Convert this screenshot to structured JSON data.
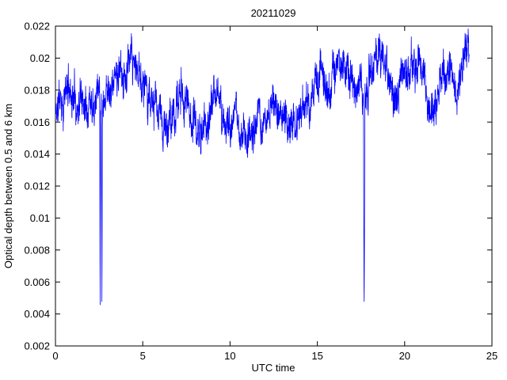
{
  "chart_data": {
    "type": "line",
    "title": "20211029",
    "xlabel": "UTC time",
    "ylabel": "Optical depth between 0.5 and 6 km",
    "xlim": [
      0,
      25
    ],
    "ylim": [
      0.002,
      0.022
    ],
    "xticks": [
      "0",
      "5",
      "10",
      "15",
      "20",
      "25"
    ],
    "yticks": [
      "0.002",
      "0.004",
      "0.006",
      "0.008",
      "0.01",
      "0.012",
      "0.014",
      "0.016",
      "0.018",
      "0.02",
      "0.022"
    ],
    "grid": false,
    "legend": "none",
    "line_color": "#0000ff",
    "axes_color": "#000000",
    "background_color": "#ffffff",
    "series": [
      {
        "name": "optical-depth-trace",
        "x_start": 0,
        "x_end": 23.7,
        "n_points": 2400,
        "seed": 11,
        "noise_hf": 0.0008,
        "noise_walk": 0.0011,
        "walk_decay": 0.9,
        "mean_profile": [
          [
            0.0,
            0.0163
          ],
          [
            0.2,
            0.0173
          ],
          [
            0.5,
            0.0176
          ],
          [
            0.8,
            0.0182
          ],
          [
            1.0,
            0.0178
          ],
          [
            1.3,
            0.0174
          ],
          [
            1.7,
            0.0178
          ],
          [
            2.0,
            0.0181
          ],
          [
            2.35,
            0.0188
          ],
          [
            2.6,
            0.0184
          ],
          [
            2.9,
            0.0184
          ],
          [
            3.3,
            0.0186
          ],
          [
            3.7,
            0.0187
          ],
          [
            4.1,
            0.019
          ],
          [
            4.4,
            0.0192
          ],
          [
            4.8,
            0.0188
          ],
          [
            5.1,
            0.0186
          ],
          [
            5.3,
            0.0182
          ],
          [
            5.6,
            0.0166
          ],
          [
            6.0,
            0.016
          ],
          [
            6.4,
            0.0153
          ],
          [
            6.7,
            0.016
          ],
          [
            7.0,
            0.017
          ],
          [
            7.3,
            0.018
          ],
          [
            7.6,
            0.0172
          ],
          [
            8.0,
            0.016
          ],
          [
            8.25,
            0.0151
          ],
          [
            8.6,
            0.0156
          ],
          [
            9.0,
            0.0172
          ],
          [
            9.25,
            0.0174
          ],
          [
            9.6,
            0.0165
          ],
          [
            10.0,
            0.016
          ],
          [
            10.35,
            0.0156
          ],
          [
            10.8,
            0.0152
          ],
          [
            11.2,
            0.0157
          ],
          [
            11.6,
            0.0153
          ],
          [
            12.0,
            0.0162
          ],
          [
            12.4,
            0.0169
          ],
          [
            12.7,
            0.0166
          ],
          [
            13.1,
            0.0158
          ],
          [
            13.5,
            0.0161
          ],
          [
            14.0,
            0.0167
          ],
          [
            14.4,
            0.0173
          ],
          [
            14.75,
            0.0179
          ],
          [
            15.0,
            0.0184
          ],
          [
            15.25,
            0.018
          ],
          [
            15.5,
            0.0176
          ],
          [
            15.8,
            0.0184
          ],
          [
            16.1,
            0.0192
          ],
          [
            16.45,
            0.0207
          ],
          [
            16.65,
            0.0197
          ],
          [
            16.9,
            0.0187
          ],
          [
            17.2,
            0.0182
          ],
          [
            17.5,
            0.0178
          ],
          [
            17.8,
            0.0182
          ],
          [
            18.1,
            0.019
          ],
          [
            18.4,
            0.0199
          ],
          [
            18.6,
            0.0203
          ],
          [
            18.85,
            0.0196
          ],
          [
            19.1,
            0.0182
          ],
          [
            19.4,
            0.0172
          ],
          [
            19.7,
            0.0178
          ],
          [
            20.0,
            0.0189
          ],
          [
            20.3,
            0.0196
          ],
          [
            20.6,
            0.0198
          ],
          [
            20.9,
            0.019
          ],
          [
            21.2,
            0.018
          ],
          [
            21.5,
            0.0173
          ],
          [
            21.8,
            0.0176
          ],
          [
            22.1,
            0.0186
          ],
          [
            22.35,
            0.0191
          ],
          [
            22.6,
            0.0188
          ],
          [
            22.85,
            0.018
          ],
          [
            23.1,
            0.0176
          ],
          [
            23.35,
            0.0186
          ],
          [
            23.55,
            0.02
          ],
          [
            23.62,
            0.0206
          ],
          [
            23.7,
            0.0199
          ]
        ],
        "spikes": [
          {
            "x": 2.56,
            "width": 0.06,
            "min": 0.0031
          },
          {
            "x": 2.66,
            "width": 0.06,
            "min": 0.0033
          },
          {
            "x": 17.68,
            "width": 0.09,
            "min": 0.0033
          }
        ]
      }
    ]
  }
}
